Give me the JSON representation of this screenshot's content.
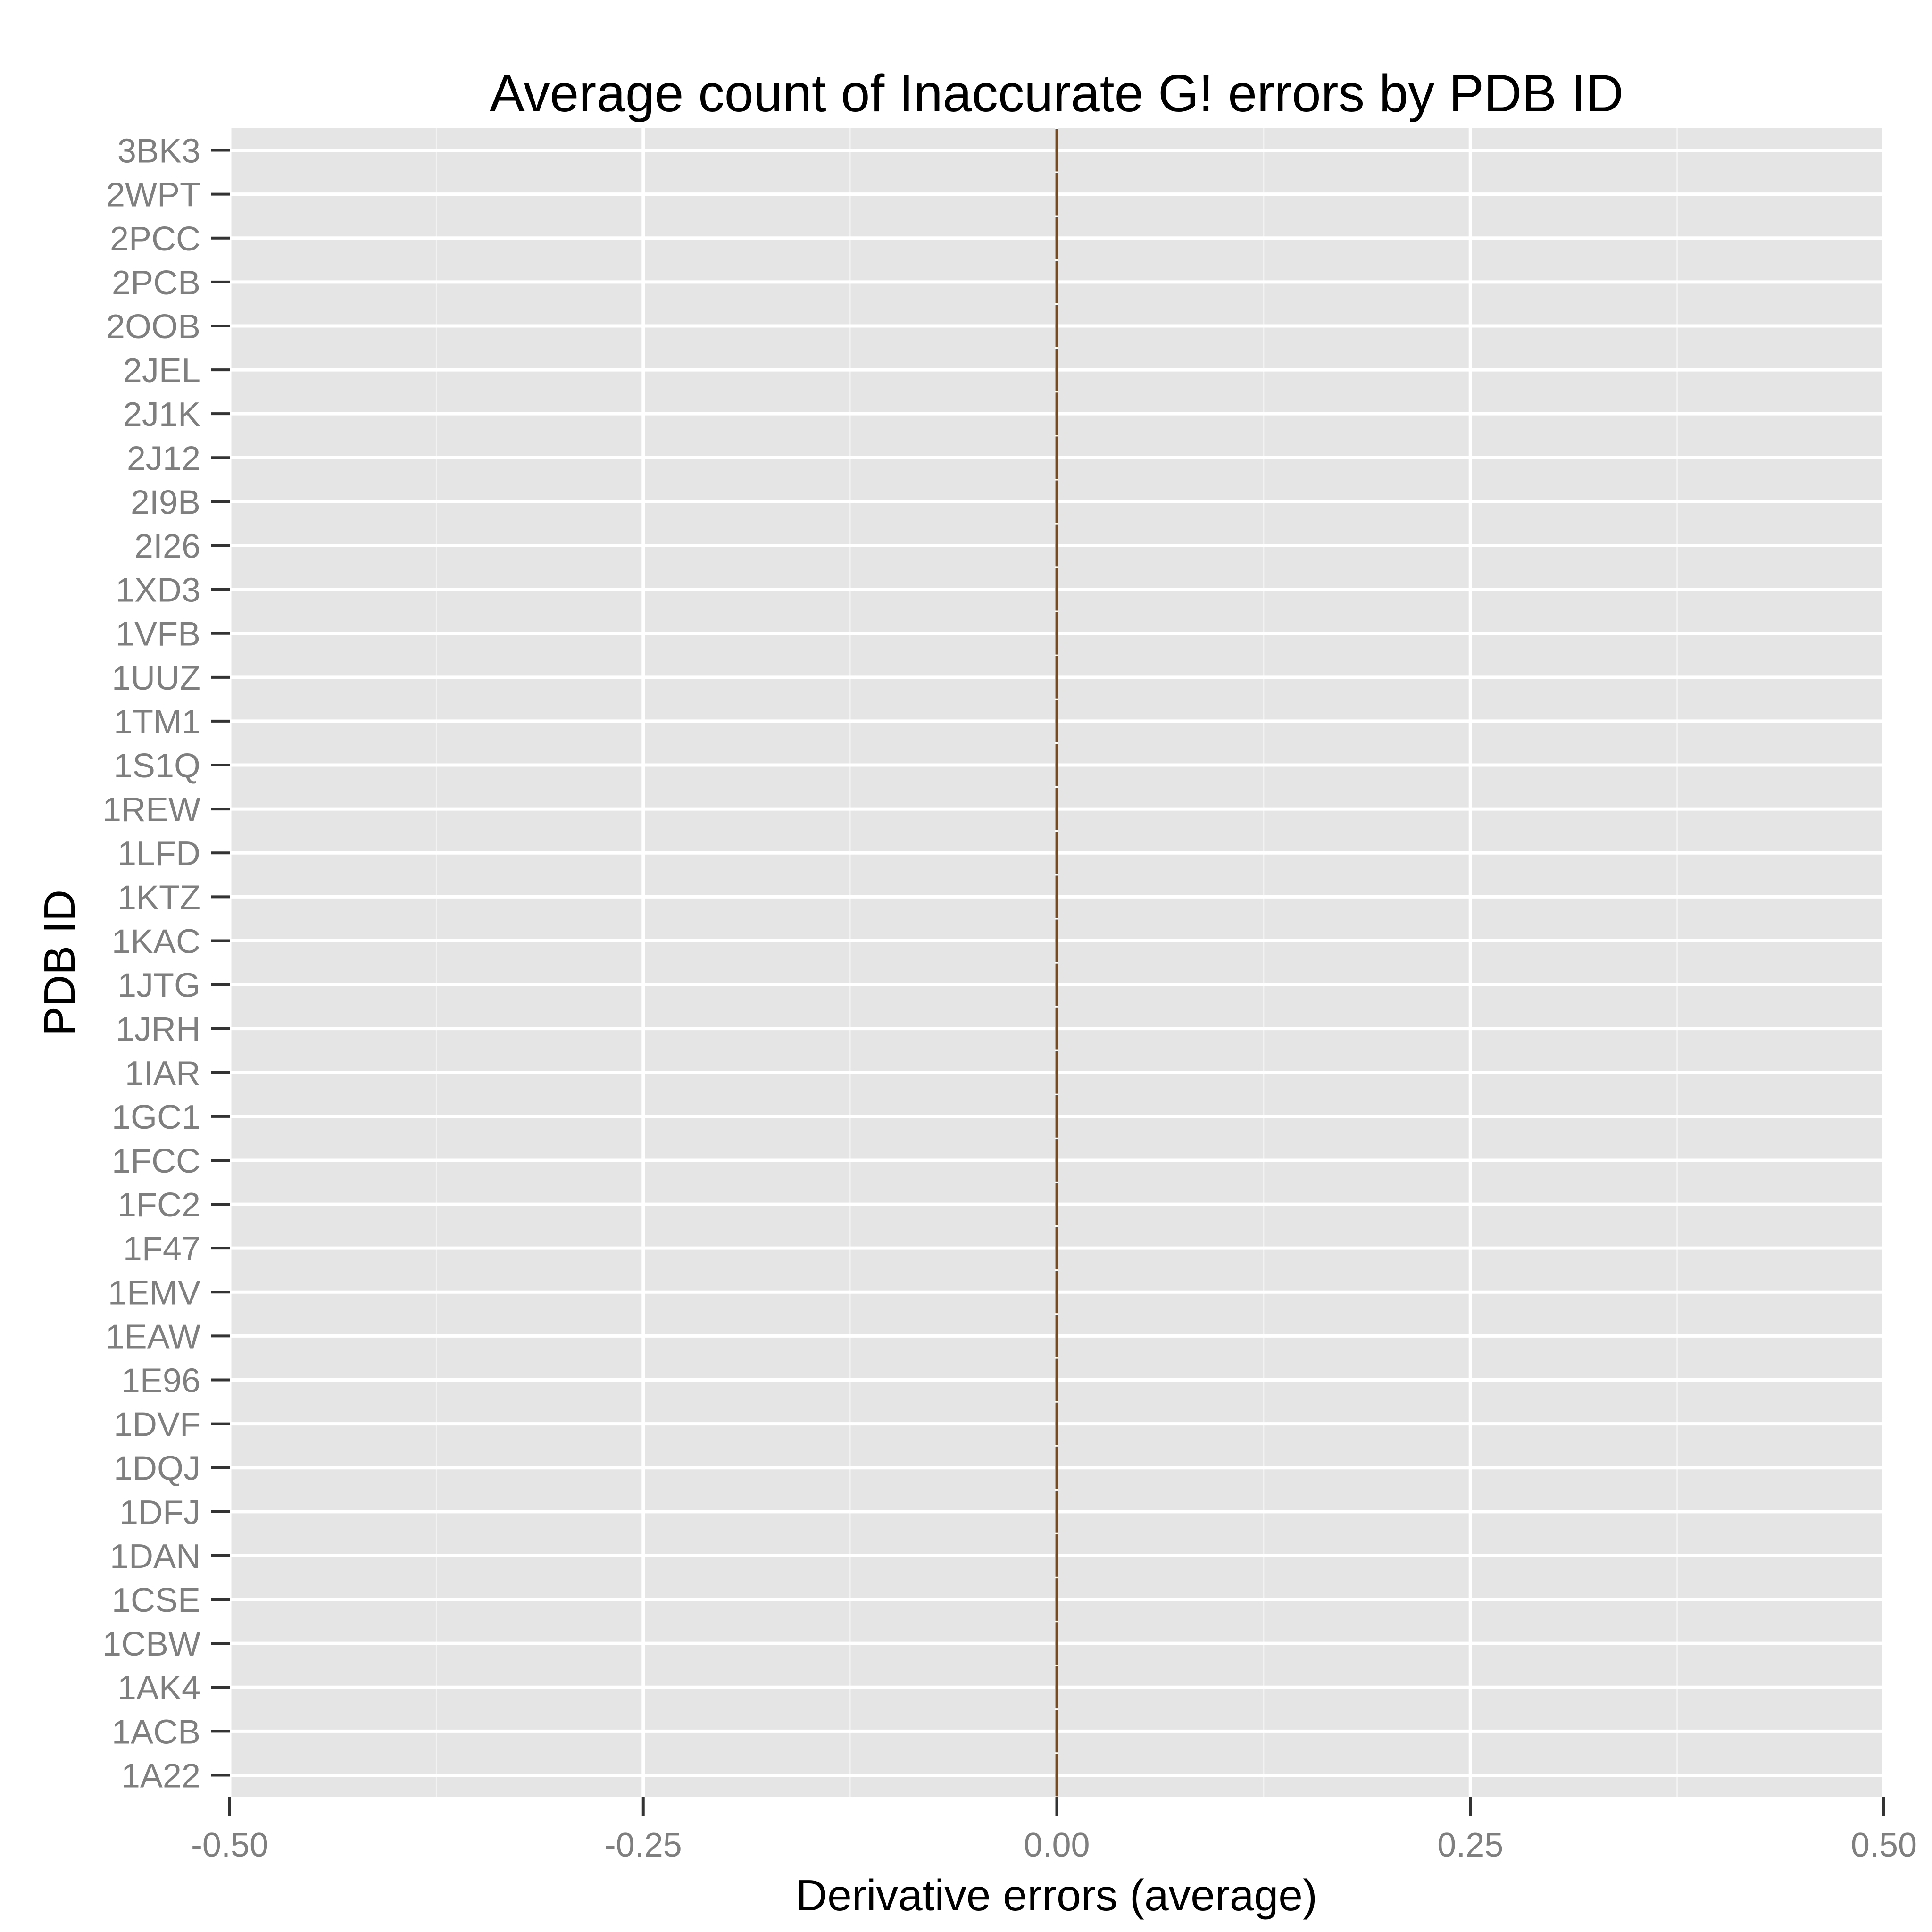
{
  "chart_data": {
    "type": "bar",
    "orientation": "horizontal",
    "title": "Average count of Inaccurate G! errors by PDB ID",
    "xlabel": "Derivative errors (average)",
    "ylabel": "PDB ID",
    "xlim": [
      -0.5,
      0.5
    ],
    "x_ticks": [
      "-0.50",
      "-0.25",
      "0.00",
      "0.25",
      "0.50"
    ],
    "categories": [
      "3BK3",
      "2WPT",
      "2PCC",
      "2PCB",
      "2OOB",
      "2JEL",
      "2J1K",
      "2J12",
      "2I9B",
      "2I26",
      "1XD3",
      "1VFB",
      "1UUZ",
      "1TM1",
      "1S1Q",
      "1REW",
      "1LFD",
      "1KTZ",
      "1KAC",
      "1JTG",
      "1JRH",
      "1IAR",
      "1GC1",
      "1FCC",
      "1FC2",
      "1F47",
      "1EMV",
      "1EAW",
      "1E96",
      "1DVF",
      "1DQJ",
      "1DFJ",
      "1DAN",
      "1CSE",
      "1CBW",
      "1AK4",
      "1ACB",
      "1A22"
    ],
    "values": [
      0,
      0,
      0,
      0,
      0,
      0,
      0,
      0,
      0,
      0,
      0,
      0,
      0,
      0,
      0,
      0,
      0,
      0,
      0,
      0,
      0,
      0,
      0,
      0,
      0,
      0,
      0,
      0,
      0,
      0,
      0,
      0,
      0,
      0,
      0,
      0,
      0,
      0
    ],
    "grid": true,
    "legend": "none",
    "colors": {
      "panel_background": "#e5e5e5",
      "grid_major": "#ffffff",
      "grid_minor": "#f2f2f2",
      "bar_outline": "#7a4a1c",
      "tick_label": "#7f7f7f",
      "axis_tick": "#333333"
    }
  }
}
